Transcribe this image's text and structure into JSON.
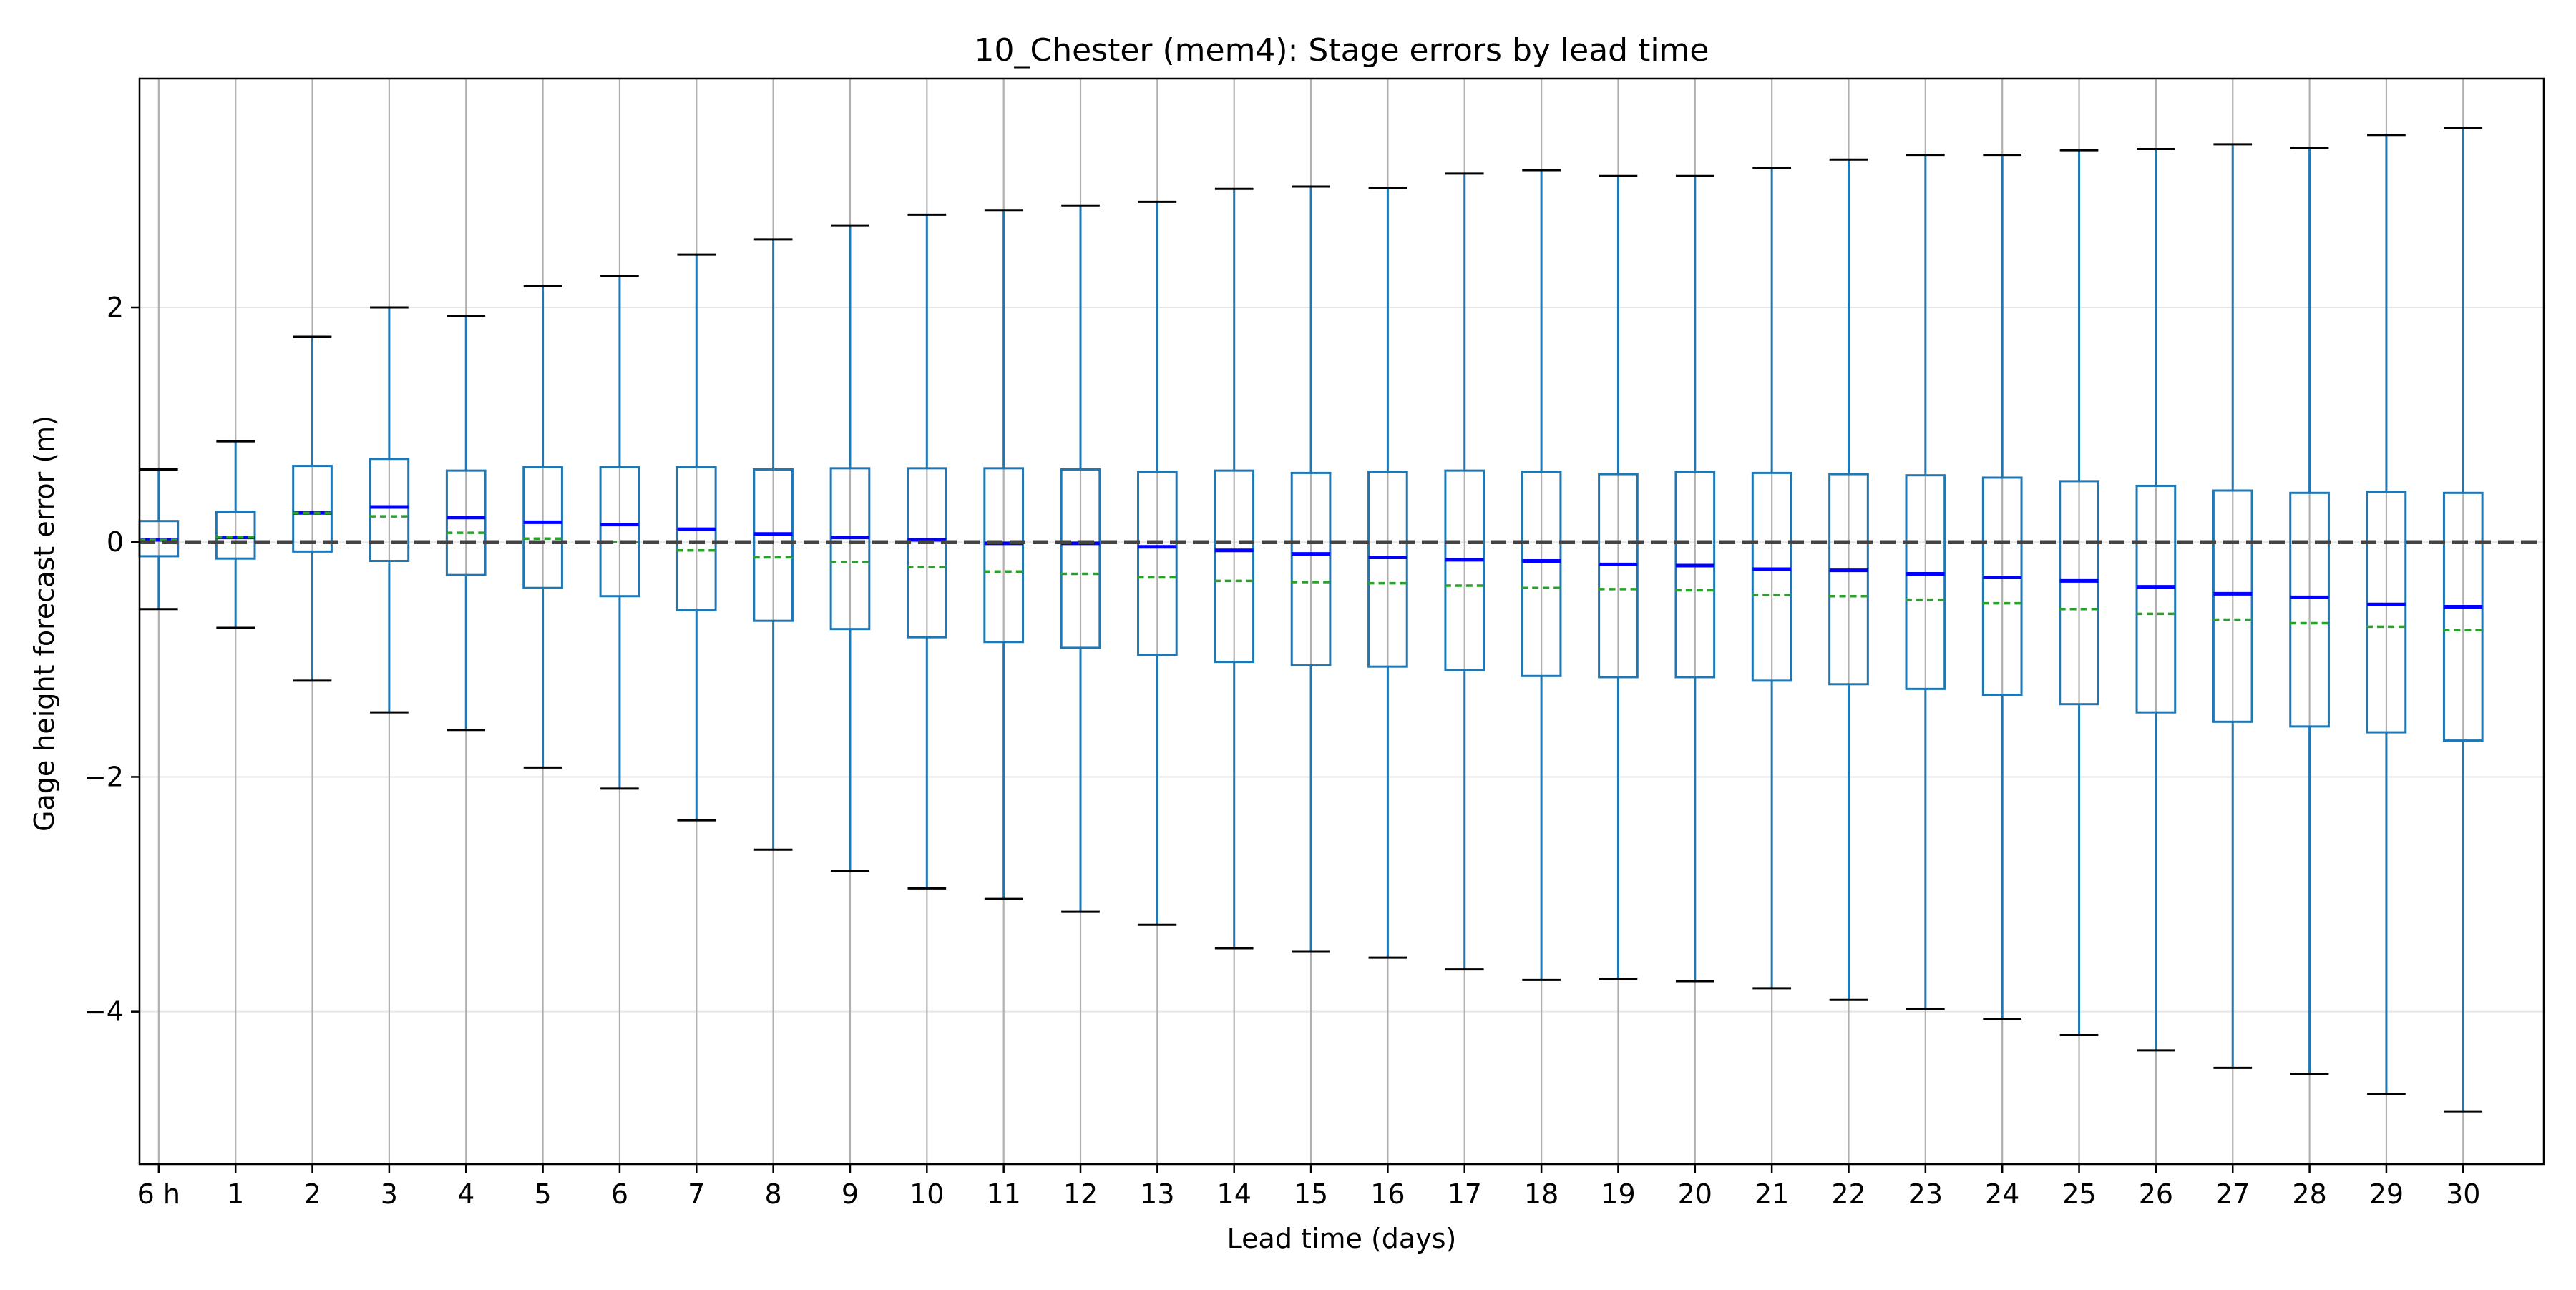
{
  "chart_data": {
    "type": "box",
    "title": "10_Chester (mem4): Stage errors by lead time",
    "xlabel": "Lead time (days)",
    "ylabel": "Gage height forecast error (m)",
    "ylim": [
      -5.3,
      3.95
    ],
    "yticks": [
      2,
      0,
      -2,
      -4
    ],
    "ytick_labels": [
      "2",
      "0",
      "−2",
      "−4"
    ],
    "reference_line": 0,
    "grid": "on",
    "colors": {
      "box": "#1f77b4",
      "median": "#0000ff",
      "mean": "#2ca02c",
      "whisker_cap": "#000000",
      "reference": "#444444",
      "grid": "#b0b0b0"
    },
    "categories": [
      "6 h",
      "1",
      "2",
      "3",
      "4",
      "5",
      "6",
      "7",
      "8",
      "9",
      "10",
      "11",
      "12",
      "13",
      "14",
      "15",
      "16",
      "17",
      "18",
      "19",
      "20",
      "21",
      "22",
      "23",
      "24",
      "25",
      "26",
      "27",
      "28",
      "29",
      "30"
    ],
    "whisker_low": [
      -0.57,
      -0.73,
      -1.18,
      -1.45,
      -1.6,
      -1.92,
      -2.1,
      -2.37,
      -2.62,
      -2.8,
      -2.95,
      -3.04,
      -3.15,
      -3.26,
      -3.46,
      -3.49,
      -3.54,
      -3.64,
      -3.73,
      -3.72,
      -3.74,
      -3.8,
      -3.9,
      -3.98,
      -4.06,
      -4.2,
      -4.33,
      -4.48,
      -4.53,
      -4.7,
      -4.85
    ],
    "q1": [
      -0.12,
      -0.14,
      -0.08,
      -0.16,
      -0.28,
      -0.39,
      -0.46,
      -0.58,
      -0.67,
      -0.74,
      -0.81,
      -0.85,
      -0.9,
      -0.96,
      -1.02,
      -1.05,
      -1.06,
      -1.09,
      -1.14,
      -1.15,
      -1.15,
      -1.18,
      -1.21,
      -1.25,
      -1.3,
      -1.38,
      -1.45,
      -1.53,
      -1.57,
      -1.62,
      -1.69
    ],
    "median": [
      0.02,
      0.04,
      0.25,
      0.3,
      0.21,
      0.17,
      0.15,
      0.11,
      0.07,
      0.04,
      0.02,
      -0.01,
      -0.01,
      -0.04,
      -0.07,
      -0.1,
      -0.13,
      -0.15,
      -0.16,
      -0.19,
      -0.2,
      -0.23,
      -0.24,
      -0.27,
      -0.3,
      -0.33,
      -0.38,
      -0.44,
      -0.47,
      -0.53,
      -0.55
    ],
    "mean": [
      0.02,
      0.04,
      0.25,
      0.22,
      0.08,
      0.03,
      0.0,
      -0.07,
      -0.13,
      -0.17,
      -0.21,
      -0.25,
      -0.27,
      -0.3,
      -0.33,
      -0.34,
      -0.35,
      -0.37,
      -0.39,
      -0.4,
      -0.41,
      -0.45,
      -0.46,
      -0.49,
      -0.52,
      -0.57,
      -0.61,
      -0.66,
      -0.69,
      -0.72,
      -0.75
    ],
    "q3": [
      0.18,
      0.26,
      0.65,
      0.71,
      0.61,
      0.64,
      0.64,
      0.64,
      0.62,
      0.63,
      0.63,
      0.63,
      0.62,
      0.6,
      0.61,
      0.59,
      0.6,
      0.61,
      0.6,
      0.58,
      0.6,
      0.59,
      0.58,
      0.57,
      0.55,
      0.52,
      0.48,
      0.44,
      0.42,
      0.43,
      0.42
    ],
    "whisker_high": [
      0.62,
      0.86,
      1.75,
      2.0,
      1.93,
      2.18,
      2.27,
      2.45,
      2.58,
      2.7,
      2.79,
      2.83,
      2.87,
      2.9,
      3.01,
      3.03,
      3.02,
      3.14,
      3.17,
      3.12,
      3.12,
      3.19,
      3.26,
      3.3,
      3.3,
      3.34,
      3.35,
      3.39,
      3.36,
      3.47,
      3.53
    ]
  }
}
